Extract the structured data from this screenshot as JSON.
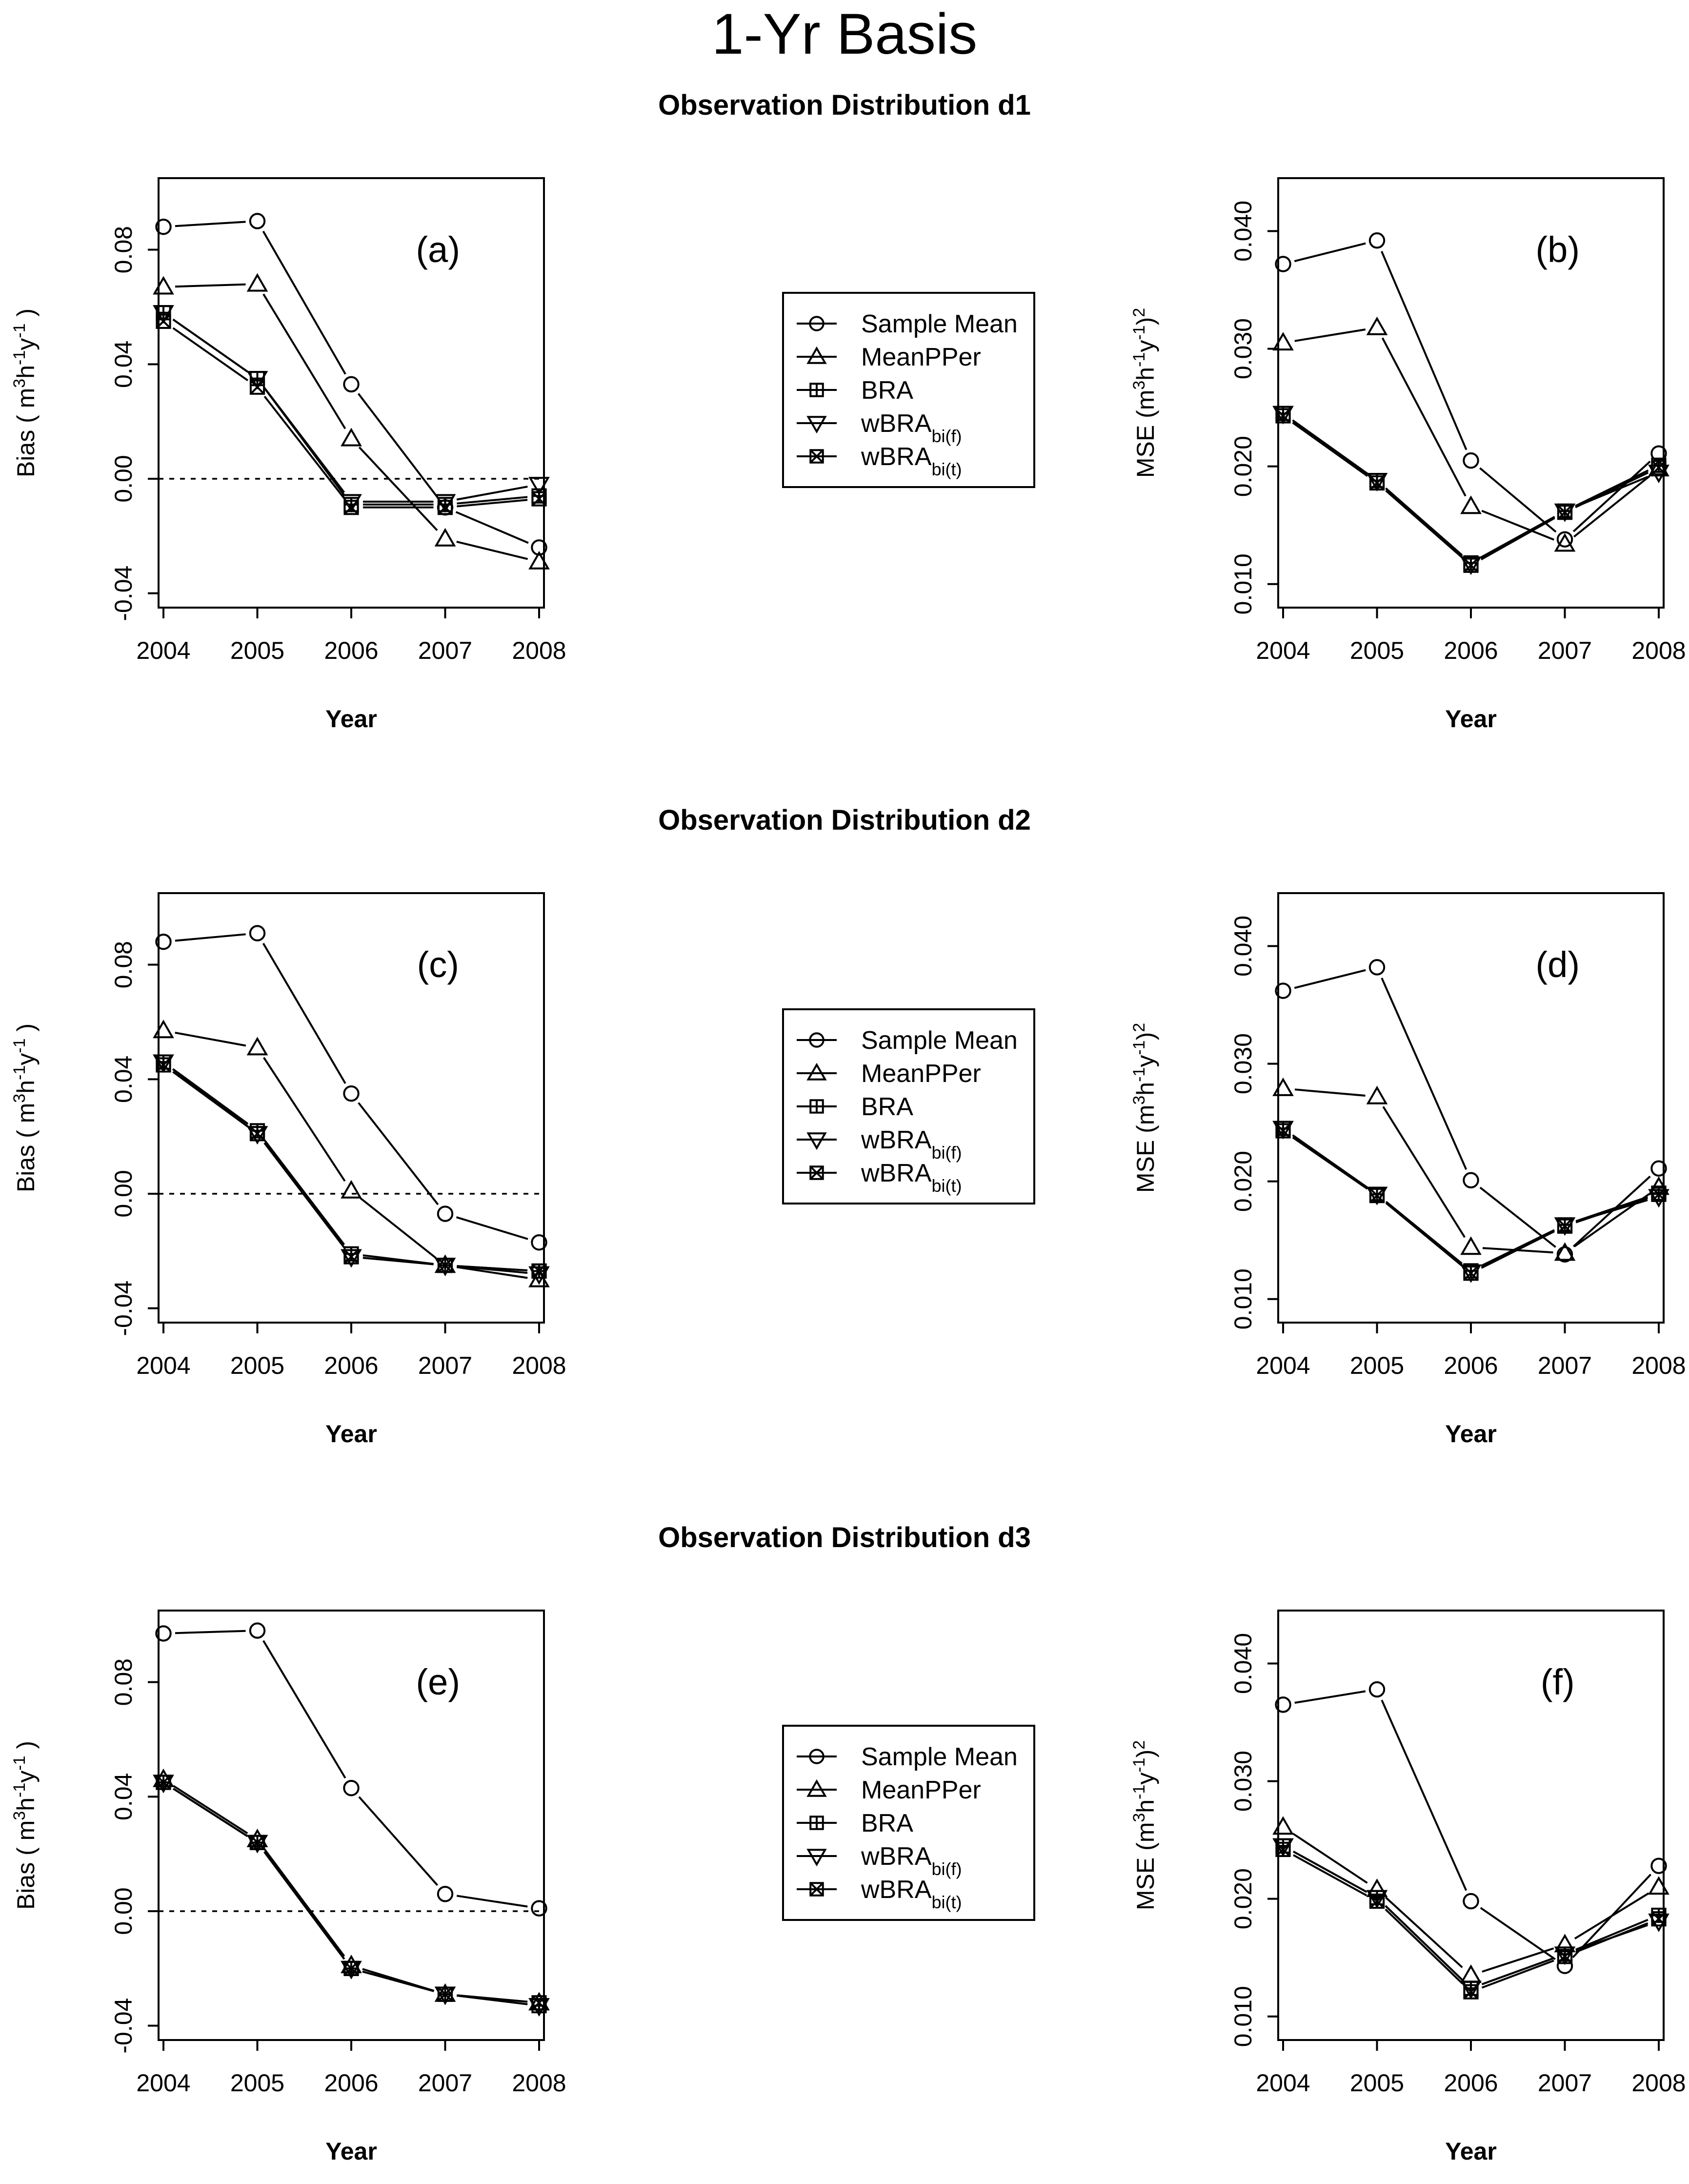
{
  "figure": {
    "title": "1-Yr Basis",
    "years": [
      "2004",
      "2005",
      "2006",
      "2007",
      "2008"
    ],
    "xlabel": "Year",
    "rows": [
      {
        "subtitle": "Observation Distribution d1"
      },
      {
        "subtitle": "Observation Distribution d2"
      },
      {
        "subtitle": "Observation Distribution d3"
      }
    ],
    "legend": [
      {
        "marker": "circle",
        "text": "Sample Mean",
        "base": "Sample Mean",
        "sub": ""
      },
      {
        "marker": "triangle-up",
        "text": "MeanPPer",
        "base": "MeanPPer",
        "sub": ""
      },
      {
        "marker": "square-plus",
        "text": "BRA",
        "base": "BRA",
        "sub": ""
      },
      {
        "marker": "triangle-down",
        "text": "wBRAbi(f)",
        "base": "wBRA",
        "sub": "bi(f)"
      },
      {
        "marker": "square-x",
        "text": "wBRAbi(t)",
        "base": "wBRA",
        "sub": "bi(t)"
      }
    ],
    "line_color": "#000000"
  },
  "chart_data": [
    {
      "id": "a",
      "panel_label": "(a)",
      "type": "line",
      "ylabel": "Bias ( m3h-1y-1 )",
      "x": [
        "2004",
        "2005",
        "2006",
        "2007",
        "2008"
      ],
      "ylim": [
        -0.045,
        0.105
      ],
      "yticks": [
        "-0.04",
        "0.00",
        "0.04",
        "0.08"
      ],
      "zero_line": true,
      "series": [
        {
          "name": "Sample Mean",
          "values": [
            0.088,
            0.09,
            0.033,
            -0.01,
            -0.024
          ]
        },
        {
          "name": "MeanPPer",
          "values": [
            0.067,
            0.068,
            0.014,
            -0.021,
            -0.029
          ]
        },
        {
          "name": "BRA",
          "values": [
            0.058,
            0.035,
            -0.009,
            -0.009,
            -0.006
          ]
        },
        {
          "name": "wBRAbi(f)",
          "values": [
            0.058,
            0.035,
            -0.008,
            -0.008,
            -0.002
          ]
        },
        {
          "name": "wBRAbi(t)",
          "values": [
            0.055,
            0.032,
            -0.01,
            -0.01,
            -0.007
          ]
        }
      ]
    },
    {
      "id": "b",
      "panel_label": "(b)",
      "type": "line",
      "ylabel": "MSE (m3h-1y-1)2",
      "x": [
        "2004",
        "2005",
        "2006",
        "2007",
        "2008"
      ],
      "ylim": [
        0.008,
        0.0445
      ],
      "yticks": [
        "0.010",
        "0.020",
        "0.030",
        "0.040"
      ],
      "zero_line": false,
      "series": [
        {
          "name": "Sample Mean",
          "values": [
            0.0372,
            0.0392,
            0.0205,
            0.0138,
            0.0211
          ]
        },
        {
          "name": "MeanPPer",
          "values": [
            0.0305,
            0.0318,
            0.0166,
            0.0134,
            0.0198
          ]
        },
        {
          "name": "BRA",
          "values": [
            0.0245,
            0.0188,
            0.0118,
            0.0162,
            0.0201
          ]
        },
        {
          "name": "wBRAbi(f)",
          "values": [
            0.0245,
            0.0188,
            0.0117,
            0.0162,
            0.0195
          ]
        },
        {
          "name": "wBRAbi(t)",
          "values": [
            0.0243,
            0.0186,
            0.0116,
            0.0161,
            0.0199
          ]
        }
      ]
    },
    {
      "id": "c",
      "panel_label": "(c)",
      "type": "line",
      "ylabel": "Bias ( m3h-1y-1 )",
      "x": [
        "2004",
        "2005",
        "2006",
        "2007",
        "2008"
      ],
      "ylim": [
        -0.045,
        0.105
      ],
      "yticks": [
        "-0.04",
        "0.00",
        "0.04",
        "0.08"
      ],
      "zero_line": true,
      "series": [
        {
          "name": "Sample Mean",
          "values": [
            0.088,
            0.091,
            0.035,
            -0.007,
            -0.017
          ]
        },
        {
          "name": "MeanPPer",
          "values": [
            0.057,
            0.051,
            0.001,
            -0.025,
            -0.03
          ]
        },
        {
          "name": "BRA",
          "values": [
            0.046,
            0.022,
            -0.021,
            -0.025,
            -0.027
          ]
        },
        {
          "name": "wBRAbi(f)",
          "values": [
            0.046,
            0.021,
            -0.022,
            -0.025,
            -0.028
          ]
        },
        {
          "name": "wBRAbi(t)",
          "values": [
            0.045,
            0.021,
            -0.022,
            -0.025,
            -0.027
          ]
        }
      ]
    },
    {
      "id": "d",
      "panel_label": "(d)",
      "type": "line",
      "ylabel": "MSE (m3h-1y-1)2",
      "x": [
        "2004",
        "2005",
        "2006",
        "2007",
        "2008"
      ],
      "ylim": [
        0.008,
        0.0445
      ],
      "yticks": [
        "0.010",
        "0.020",
        "0.030",
        "0.040"
      ],
      "zero_line": false,
      "series": [
        {
          "name": "Sample Mean",
          "values": [
            0.0362,
            0.0382,
            0.0201,
            0.0138,
            0.0211
          ]
        },
        {
          "name": "MeanPPer",
          "values": [
            0.0279,
            0.0272,
            0.0144,
            0.0139,
            0.0195
          ]
        },
        {
          "name": "BRA",
          "values": [
            0.0245,
            0.0189,
            0.0124,
            0.0163,
            0.019
          ]
        },
        {
          "name": "wBRAbi(f)",
          "values": [
            0.0245,
            0.0189,
            0.0123,
            0.0163,
            0.0187
          ]
        },
        {
          "name": "wBRAbi(t)",
          "values": [
            0.0243,
            0.0188,
            0.0122,
            0.0162,
            0.0189
          ]
        }
      ]
    },
    {
      "id": "e",
      "panel_label": "(e)",
      "type": "line",
      "ylabel": "Bias ( m3h-1y-1 )",
      "x": [
        "2004",
        "2005",
        "2006",
        "2007",
        "2008"
      ],
      "ylim": [
        -0.045,
        0.105
      ],
      "yticks": [
        "-0.04",
        "0.00",
        "0.04",
        "0.08"
      ],
      "zero_line": true,
      "series": [
        {
          "name": "Sample Mean",
          "values": [
            0.097,
            0.098,
            0.043,
            0.006,
            0.001
          ]
        },
        {
          "name": "MeanPPer",
          "values": [
            0.046,
            0.025,
            -0.019,
            -0.029,
            -0.032
          ]
        },
        {
          "name": "BRA",
          "values": [
            0.045,
            0.024,
            -0.02,
            -0.029,
            -0.033
          ]
        },
        {
          "name": "wBRAbi(f)",
          "values": [
            0.045,
            0.024,
            -0.02,
            -0.029,
            -0.033
          ]
        },
        {
          "name": "wBRAbi(t)",
          "values": [
            0.045,
            0.024,
            -0.02,
            -0.029,
            -0.032
          ]
        }
      ]
    },
    {
      "id": "f",
      "panel_label": "(f)",
      "type": "line",
      "ylabel": "MSE (m3h-1y-1)2",
      "x": [
        "2004",
        "2005",
        "2006",
        "2007",
        "2008"
      ],
      "ylim": [
        0.008,
        0.0445
      ],
      "yticks": [
        "0.010",
        "0.020",
        "0.030",
        "0.040"
      ],
      "zero_line": false,
      "series": [
        {
          "name": "Sample Mean",
          "values": [
            0.0365,
            0.0378,
            0.0198,
            0.0143,
            0.0228
          ]
        },
        {
          "name": "MeanPPer",
          "values": [
            0.0261,
            0.0208,
            0.0135,
            0.0161,
            0.021
          ]
        },
        {
          "name": "BRA",
          "values": [
            0.0245,
            0.0201,
            0.0124,
            0.0153,
            0.0186
          ]
        },
        {
          "name": "wBRAbi(f)",
          "values": [
            0.0245,
            0.0201,
            0.0124,
            0.0153,
            0.0181
          ]
        },
        {
          "name": "wBRAbi(t)",
          "values": [
            0.0242,
            0.0198,
            0.0121,
            0.0151,
            0.0183
          ]
        }
      ]
    }
  ]
}
